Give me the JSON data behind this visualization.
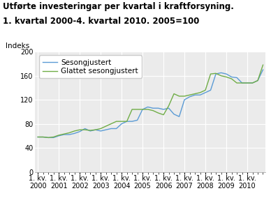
{
  "title_line1": "Utførte investeringar per kvartal i kraftforsyning.",
  "title_line2": "1. kvartal 2000-4. kvartal 2010. 2005=100",
  "ylabel": "Indeks",
  "ylim": [
    0,
    200
  ],
  "yticks": [
    0,
    40,
    80,
    120,
    160,
    200
  ],
  "xtick_labels": [
    "1. kv.\n2000",
    "1. kv.\n2001",
    "1. kv.\n2002",
    "1. kv.\n2003",
    "1. kv.\n2004",
    "1. kv.\n2005",
    "1. kv.\n2006",
    "1. kv.\n2007",
    "1. kv.\n2008",
    "1. kv.\n2009",
    "1. kv.\n2010"
  ],
  "xtick_positions": [
    0,
    4,
    8,
    12,
    16,
    20,
    24,
    28,
    32,
    36,
    40
  ],
  "sesongjustert": [
    58,
    58,
    57,
    57,
    60,
    62,
    62,
    64,
    67,
    72,
    68,
    70,
    68,
    70,
    72,
    72,
    80,
    84,
    84,
    86,
    104,
    108,
    106,
    106,
    104,
    106,
    96,
    92,
    120,
    125,
    128,
    128,
    132,
    136,
    163,
    165,
    163,
    158,
    157,
    148,
    148,
    148,
    152,
    170
  ],
  "glattet": [
    58,
    58,
    57,
    58,
    61,
    63,
    65,
    68,
    70,
    70,
    69,
    70,
    72,
    76,
    80,
    84,
    84,
    84,
    104,
    104,
    104,
    104,
    102,
    98,
    95,
    110,
    130,
    126,
    126,
    128,
    130,
    132,
    136,
    163,
    164,
    160,
    158,
    155,
    148,
    148,
    148,
    148,
    152,
    178
  ],
  "line1_color": "#5b9bd5",
  "line2_color": "#70ad47",
  "line1_label": "Sesongjustert",
  "line2_label": "Glattet sesongjustert",
  "bg_color": "#ffffff",
  "plot_bg_color": "#ebebeb",
  "grid_color": "#ffffff",
  "title_fontsize": 8.5,
  "tick_fontsize": 7,
  "legend_fontsize": 7.5
}
